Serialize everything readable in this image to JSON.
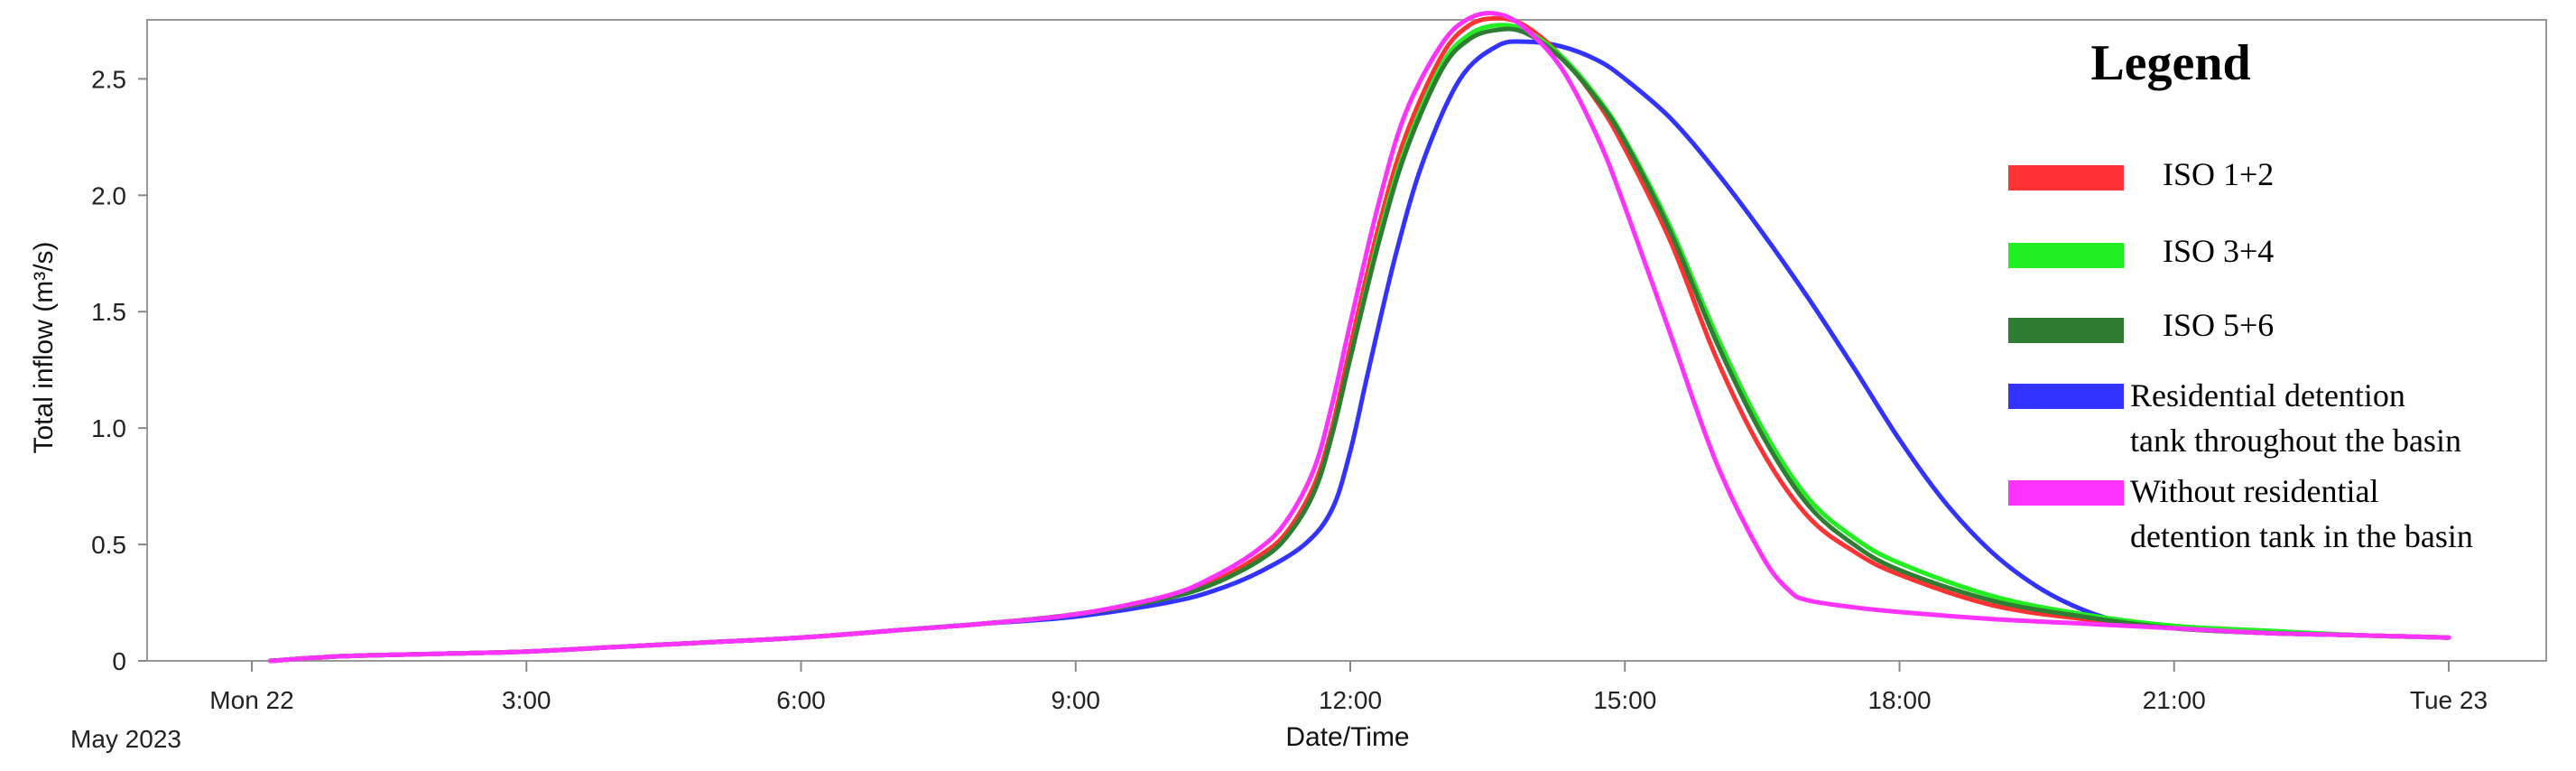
{
  "chart_data": {
    "type": "line",
    "xlabel": "Date/Time",
    "ylabel": "Total inflow (m³/s)",
    "date_caption": "May 2023",
    "x_unit": "hours since Mon 22 00:00",
    "xlim": [
      0,
      24
    ],
    "ylim": [
      0,
      2.8
    ],
    "grid": false,
    "legend_position": "top-right",
    "x_ticks": [
      {
        "x": 0,
        "label": "Mon 22"
      },
      {
        "x": 3,
        "label": "3:00"
      },
      {
        "x": 6,
        "label": "6:00"
      },
      {
        "x": 9,
        "label": "9:00"
      },
      {
        "x": 12,
        "label": "12:00"
      },
      {
        "x": 15,
        "label": "15:00"
      },
      {
        "x": 18,
        "label": "18:00"
      },
      {
        "x": 21,
        "label": "21:00"
      },
      {
        "x": 24,
        "label": "Tue 23"
      }
    ],
    "y_ticks": [
      {
        "y": 0,
        "label": "0"
      },
      {
        "y": 0.5,
        "label": "0.5"
      },
      {
        "y": 1.0,
        "label": "1.0"
      },
      {
        "y": 1.5,
        "label": "1.5"
      },
      {
        "y": 2.0,
        "label": "2.0"
      },
      {
        "y": 2.5,
        "label": "2.5"
      }
    ],
    "legend": {
      "title": "Legend",
      "entries": [
        {
          "label_lines": [
            "ISO 1+2"
          ],
          "color": "#ff3333"
        },
        {
          "label_lines": [
            "ISO 3+4"
          ],
          "color": "#22ee22"
        },
        {
          "label_lines": [
            "ISO 5+6"
          ],
          "color": "#2e7d32"
        },
        {
          "label_lines": [
            "Residential detention",
            "tank throughout the basin"
          ],
          "color": "#3333ff"
        },
        {
          "label_lines": [
            "Without residential",
            "detention tank in the basin"
          ],
          "color": "#ff33ff"
        }
      ]
    },
    "series": [
      {
        "name": "ISO 1+2",
        "color": "#ff3333",
        "width": 5,
        "points": [
          [
            0.2,
            0
          ],
          [
            1,
            0.02
          ],
          [
            2,
            0.03
          ],
          [
            3,
            0.04
          ],
          [
            4,
            0.06
          ],
          [
            5,
            0.08
          ],
          [
            6,
            0.1
          ],
          [
            7,
            0.13
          ],
          [
            8,
            0.16
          ],
          [
            9,
            0.2
          ],
          [
            10,
            0.27
          ],
          [
            10.5,
            0.34
          ],
          [
            11,
            0.45
          ],
          [
            11.3,
            0.55
          ],
          [
            11.6,
            0.75
          ],
          [
            11.8,
            1.0
          ],
          [
            12,
            1.35
          ],
          [
            12.3,
            1.85
          ],
          [
            12.6,
            2.25
          ],
          [
            13,
            2.6
          ],
          [
            13.3,
            2.73
          ],
          [
            13.6,
            2.76
          ],
          [
            13.9,
            2.73
          ],
          [
            14.3,
            2.6
          ],
          [
            14.7,
            2.4
          ],
          [
            15,
            2.2
          ],
          [
            15.5,
            1.8
          ],
          [
            16,
            1.3
          ],
          [
            16.5,
            0.9
          ],
          [
            17,
            0.62
          ],
          [
            17.5,
            0.47
          ],
          [
            18,
            0.37
          ],
          [
            19,
            0.24
          ],
          [
            20,
            0.18
          ],
          [
            21,
            0.14
          ],
          [
            22,
            0.12
          ],
          [
            23,
            0.11
          ],
          [
            24,
            0.1
          ]
        ]
      },
      {
        "name": "ISO 3+4",
        "color": "#22ee22",
        "width": 5,
        "points": [
          [
            0.2,
            0
          ],
          [
            1,
            0.02
          ],
          [
            2,
            0.03
          ],
          [
            3,
            0.04
          ],
          [
            4,
            0.06
          ],
          [
            5,
            0.08
          ],
          [
            6,
            0.1
          ],
          [
            7,
            0.13
          ],
          [
            8,
            0.16
          ],
          [
            9,
            0.2
          ],
          [
            10,
            0.27
          ],
          [
            10.5,
            0.33
          ],
          [
            11,
            0.43
          ],
          [
            11.3,
            0.53
          ],
          [
            11.6,
            0.72
          ],
          [
            11.8,
            0.97
          ],
          [
            12,
            1.3
          ],
          [
            12.3,
            1.8
          ],
          [
            12.6,
            2.2
          ],
          [
            13,
            2.56
          ],
          [
            13.3,
            2.69
          ],
          [
            13.6,
            2.73
          ],
          [
            13.9,
            2.71
          ],
          [
            14.3,
            2.6
          ],
          [
            14.7,
            2.42
          ],
          [
            15,
            2.24
          ],
          [
            15.5,
            1.86
          ],
          [
            16,
            1.4
          ],
          [
            16.5,
            1.0
          ],
          [
            17,
            0.7
          ],
          [
            17.5,
            0.53
          ],
          [
            18,
            0.42
          ],
          [
            19,
            0.28
          ],
          [
            20,
            0.2
          ],
          [
            21,
            0.15
          ],
          [
            22,
            0.13
          ],
          [
            23,
            0.11
          ],
          [
            24,
            0.1
          ]
        ]
      },
      {
        "name": "ISO 5+6",
        "color": "#2e7d32",
        "width": 5,
        "points": [
          [
            0.2,
            0
          ],
          [
            1,
            0.02
          ],
          [
            2,
            0.03
          ],
          [
            3,
            0.04
          ],
          [
            4,
            0.06
          ],
          [
            5,
            0.08
          ],
          [
            6,
            0.1
          ],
          [
            7,
            0.13
          ],
          [
            8,
            0.16
          ],
          [
            9,
            0.2
          ],
          [
            10,
            0.27
          ],
          [
            10.5,
            0.33
          ],
          [
            11,
            0.43
          ],
          [
            11.3,
            0.53
          ],
          [
            11.6,
            0.72
          ],
          [
            11.8,
            0.97
          ],
          [
            12,
            1.3
          ],
          [
            12.3,
            1.78
          ],
          [
            12.6,
            2.18
          ],
          [
            13,
            2.54
          ],
          [
            13.3,
            2.67
          ],
          [
            13.6,
            2.71
          ],
          [
            13.9,
            2.7
          ],
          [
            14.3,
            2.59
          ],
          [
            14.7,
            2.41
          ],
          [
            15,
            2.23
          ],
          [
            15.5,
            1.84
          ],
          [
            16,
            1.37
          ],
          [
            16.5,
            0.97
          ],
          [
            17,
            0.67
          ],
          [
            17.5,
            0.5
          ],
          [
            18,
            0.39
          ],
          [
            19,
            0.26
          ],
          [
            20,
            0.19
          ],
          [
            21,
            0.14
          ],
          [
            22,
            0.12
          ],
          [
            23,
            0.11
          ],
          [
            24,
            0.1
          ]
        ]
      },
      {
        "name": "Residential detention tank throughout the basin",
        "color": "#3333ff",
        "width": 5,
        "points": [
          [
            0.2,
            0
          ],
          [
            1,
            0.02
          ],
          [
            2,
            0.03
          ],
          [
            3,
            0.04
          ],
          [
            4,
            0.06
          ],
          [
            5,
            0.08
          ],
          [
            6,
            0.1
          ],
          [
            7,
            0.13
          ],
          [
            8,
            0.16
          ],
          [
            9,
            0.19
          ],
          [
            10,
            0.25
          ],
          [
            10.5,
            0.3
          ],
          [
            11,
            0.38
          ],
          [
            11.5,
            0.5
          ],
          [
            11.8,
            0.65
          ],
          [
            12,
            0.9
          ],
          [
            12.2,
            1.25
          ],
          [
            12.5,
            1.75
          ],
          [
            12.8,
            2.15
          ],
          [
            13.2,
            2.5
          ],
          [
            13.6,
            2.64
          ],
          [
            13.9,
            2.66
          ],
          [
            14.3,
            2.64
          ],
          [
            14.7,
            2.58
          ],
          [
            15,
            2.5
          ],
          [
            15.5,
            2.33
          ],
          [
            16,
            2.1
          ],
          [
            16.5,
            1.84
          ],
          [
            17,
            1.56
          ],
          [
            17.5,
            1.26
          ],
          [
            18,
            0.95
          ],
          [
            18.5,
            0.68
          ],
          [
            19,
            0.47
          ],
          [
            19.5,
            0.32
          ],
          [
            20,
            0.22
          ],
          [
            20.5,
            0.16
          ],
          [
            21,
            0.14
          ],
          [
            22,
            0.12
          ],
          [
            23,
            0.11
          ],
          [
            24,
            0.1
          ]
        ]
      },
      {
        "name": "Without residential detention tank in the basin",
        "color": "#ff33ff",
        "width": 5,
        "points": [
          [
            0.2,
            0
          ],
          [
            1,
            0.02
          ],
          [
            2,
            0.03
          ],
          [
            3,
            0.04
          ],
          [
            4,
            0.06
          ],
          [
            5,
            0.08
          ],
          [
            6,
            0.1
          ],
          [
            7,
            0.13
          ],
          [
            8,
            0.16
          ],
          [
            9,
            0.2
          ],
          [
            10,
            0.28
          ],
          [
            10.5,
            0.36
          ],
          [
            11,
            0.48
          ],
          [
            11.3,
            0.6
          ],
          [
            11.6,
            0.82
          ],
          [
            11.8,
            1.1
          ],
          [
            12,
            1.45
          ],
          [
            12.3,
            1.95
          ],
          [
            12.6,
            2.35
          ],
          [
            13,
            2.65
          ],
          [
            13.3,
            2.76
          ],
          [
            13.6,
            2.78
          ],
          [
            13.9,
            2.72
          ],
          [
            14.3,
            2.55
          ],
          [
            14.7,
            2.25
          ],
          [
            15,
            1.95
          ],
          [
            15.5,
            1.4
          ],
          [
            16,
            0.85
          ],
          [
            16.5,
            0.45
          ],
          [
            16.8,
            0.3
          ],
          [
            17,
            0.26
          ],
          [
            17.5,
            0.23
          ],
          [
            18,
            0.21
          ],
          [
            19,
            0.18
          ],
          [
            20,
            0.16
          ],
          [
            21,
            0.14
          ],
          [
            22,
            0.12
          ],
          [
            23,
            0.11
          ],
          [
            24,
            0.1
          ]
        ]
      }
    ]
  }
}
